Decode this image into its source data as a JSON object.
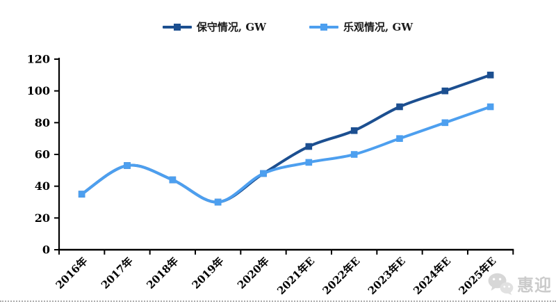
{
  "legend": {
    "items": [
      {
        "label": "保守情况, GW",
        "color": "#1c4f90"
      },
      {
        "label": "乐观情况, GW",
        "color": "#4d9fef"
      }
    ]
  },
  "watermark": {
    "text": "惠迎",
    "icon": "wechat-icon"
  },
  "chart_data": {
    "type": "line",
    "title": "",
    "xlabel": "",
    "ylabel": "",
    "categories": [
      "2016年",
      "2017年",
      "2018年",
      "2019年",
      "2020年",
      "2021年E",
      "2022年E",
      "2023年E",
      "2024年E",
      "2025年E"
    ],
    "series": [
      {
        "name": "保守情况, GW",
        "color": "#1c4f90",
        "values": [
          35,
          53,
          44,
          30,
          48,
          65,
          75,
          90,
          100,
          110
        ]
      },
      {
        "name": "乐观情况, GW",
        "color": "#4d9fef",
        "values": [
          35,
          53,
          44,
          30,
          48,
          55,
          60,
          70,
          80,
          90
        ]
      }
    ],
    "ylim": [
      0,
      120
    ],
    "ytick_step": 20,
    "yticks": [
      0,
      20,
      40,
      60,
      80,
      100,
      120
    ],
    "grid": false,
    "smooth": true,
    "marker": "square",
    "legend_position": "top",
    "axis_color": "#000000",
    "tick_label_color": "#000000"
  }
}
